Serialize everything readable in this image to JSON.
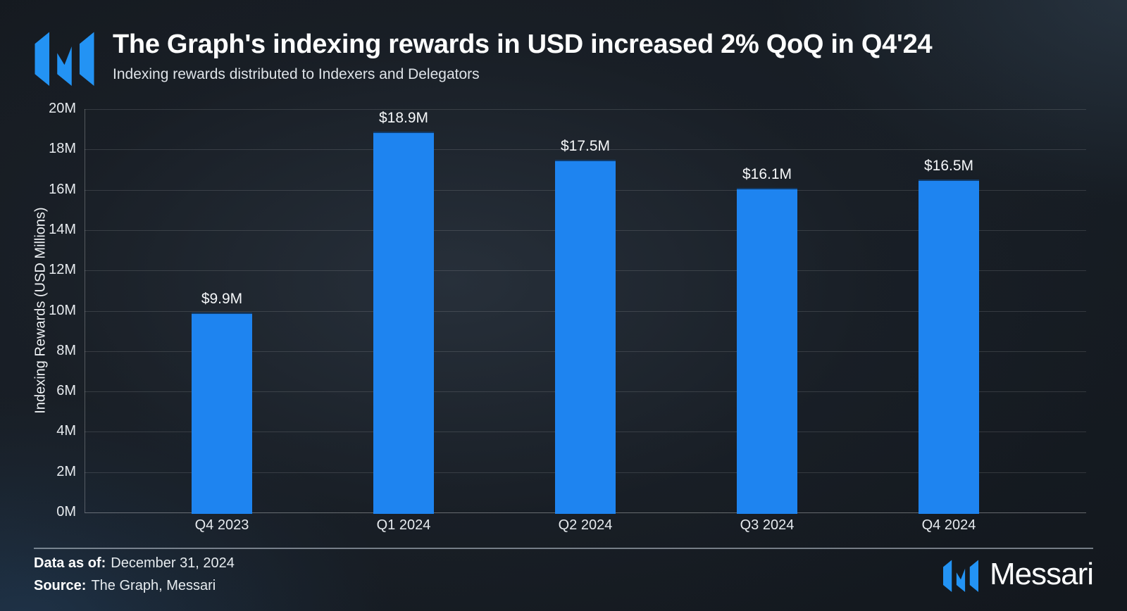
{
  "chart_data": {
    "type": "bar",
    "title": "The Graph's indexing rewards in USD increased 2% QoQ in Q4'24",
    "subtitle": "Indexing rewards distributed to Indexers and Delegators",
    "categories": [
      "Q4 2023",
      "Q1 2024",
      "Q2 2024",
      "Q3 2024",
      "Q4 2024"
    ],
    "values": [
      9.9,
      18.9,
      17.5,
      16.1,
      16.5
    ],
    "value_labels": [
      "$9.9M",
      "$18.9M",
      "$17.5M",
      "$16.1M",
      "$16.5M"
    ],
    "xlabel": "",
    "ylabel": "Indexing Rewards (USD Millions)",
    "ylim": [
      0,
      20
    ],
    "ytick_step": 2,
    "ytick_labels": [
      "0M",
      "2M",
      "4M",
      "6M",
      "8M",
      "10M",
      "12M",
      "14M",
      "16M",
      "18M",
      "20M"
    ],
    "grid": "horizontal",
    "legend": "none",
    "bar_color": "#1e84f0"
  },
  "footer": {
    "data_as_of_label": "Data as of:",
    "data_as_of_value": "December 31, 2024",
    "source_label": "Source:",
    "source_value": "The Graph, Messari",
    "brand": "Messari"
  },
  "icons": {
    "header_logo": "messari-logo-icon",
    "footer_logo": "messari-logo-icon"
  },
  "colors": {
    "accent_blue": "#1e84f0",
    "logo_blue": "#2393f4",
    "background": "#171d24",
    "text": "#ffffff"
  }
}
